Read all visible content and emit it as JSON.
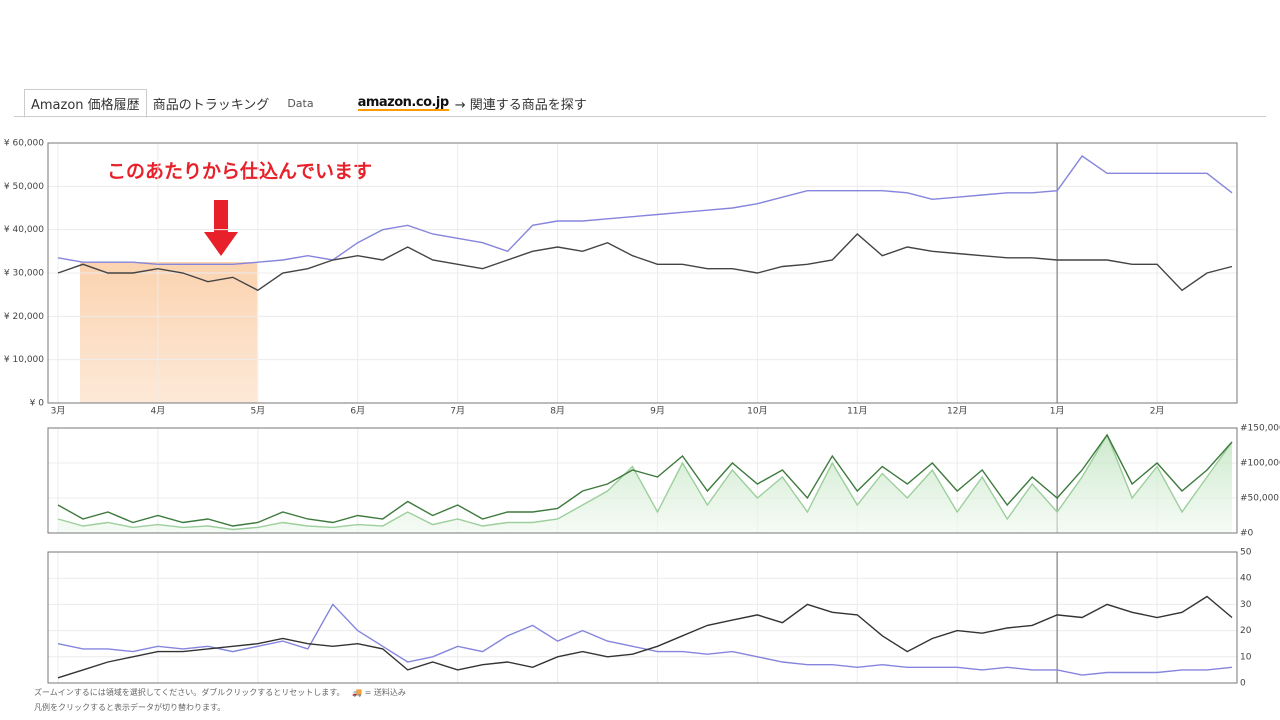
{
  "tabs": [
    "Amazon 価格履歴",
    "商品のトラッキング",
    "Data",
    "amazon.co.jp",
    "→ 関連する商品を探す"
  ],
  "annotation": "このあたりから仕込んでいます",
  "footer": [
    "ズームインするには領域を選択してください。ダブルクリックするとリセットします。",
    "= 送料込み",
    "凡例をクリックすると表示データが切り替わります。"
  ],
  "chart_data": [
    {
      "type": "line",
      "year_divider": 10,
      "xlim": [
        -0.1,
        11.8
      ],
      "xticks": [
        {
          "value": 0,
          "label": "3月"
        },
        {
          "value": 1,
          "label": "4月"
        },
        {
          "value": 2,
          "label": "5月"
        },
        {
          "value": 3,
          "label": "6月"
        },
        {
          "value": 4,
          "label": "7月"
        },
        {
          "value": 5,
          "label": "8月"
        },
        {
          "value": 6,
          "label": "9月"
        },
        {
          "value": 7,
          "label": "10月"
        },
        {
          "value": 8,
          "label": "11月"
        },
        {
          "value": 9,
          "label": "12月"
        },
        {
          "value": 10,
          "label": "1月"
        },
        {
          "value": 11,
          "label": "2月"
        }
      ],
      "ylim": [
        0,
        60000
      ],
      "yticks": [
        {
          "value": 0,
          "label": "¥ 0"
        },
        {
          "value": 10000,
          "label": "¥ 10,000"
        },
        {
          "value": 20000,
          "label": "¥ 20,000"
        },
        {
          "value": 30000,
          "label": "¥ 30,000"
        },
        {
          "value": 40000,
          "label": "¥ 40,000"
        },
        {
          "value": 50000,
          "label": "¥ 50,000"
        },
        {
          "value": 60000,
          "label": "¥ 60,000"
        }
      ],
      "x": [
        0,
        0.25,
        0.5,
        0.75,
        1,
        1.25,
        1.5,
        1.75,
        2,
        2.25,
        2.5,
        2.75,
        3,
        3.25,
        3.5,
        3.75,
        4,
        4.25,
        4.5,
        4.75,
        5,
        5.25,
        5.5,
        5.75,
        6,
        6.25,
        6.5,
        6.75,
        7,
        7.25,
        7.5,
        7.75,
        8,
        8.25,
        8.5,
        8.75,
        9,
        9.25,
        9.5,
        9.75,
        10,
        10.25,
        10.5,
        10.75,
        11,
        11.25,
        11.5,
        11.75
      ],
      "series": [
        {
          "color": "#8585dd",
          "values": [
            33500,
            32500,
            32500,
            32500,
            32000,
            32000,
            32000,
            32000,
            32500,
            33000,
            34000,
            33000,
            37000,
            40000,
            41000,
            39000,
            38000,
            37000,
            35000,
            41000,
            42000,
            42000,
            42500,
            43000,
            43500,
            44000,
            44500,
            45000,
            46000,
            47500,
            49000,
            49000,
            49000,
            49000,
            48500,
            47000,
            47500,
            48000,
            48500,
            48500,
            49000,
            57000,
            53000,
            53000,
            53000,
            53000,
            53000,
            48500
          ]
        },
        {
          "color": "#444444",
          "values": [
            30000,
            32000,
            30000,
            30000,
            31000,
            30000,
            28000,
            29000,
            26000,
            30000,
            31000,
            33000,
            34000,
            33000,
            36000,
            33000,
            32000,
            31000,
            33000,
            35000,
            36000,
            35000,
            37000,
            34000,
            32000,
            32000,
            31000,
            31000,
            30000,
            31500,
            32000,
            33000,
            39000,
            34000,
            36000,
            35000,
            34500,
            34000,
            33500,
            33500,
            33000,
            33000,
            33000,
            32000,
            32000,
            26000,
            30000,
            31500
          ]
        }
      ]
    },
    {
      "type": "area",
      "xlim": [
        -0.1,
        11.8
      ],
      "ylim": [
        0,
        150000
      ],
      "yticks": [
        {
          "value": 0,
          "label": "#0"
        },
        {
          "value": 50000,
          "label": "#50,000"
        },
        {
          "value": 100000,
          "label": "#100,000"
        },
        {
          "value": 150000,
          "label": "#150,000"
        }
      ],
      "x": [
        0,
        0.25,
        0.5,
        0.75,
        1,
        1.25,
        1.5,
        1.75,
        2,
        2.25,
        2.5,
        2.75,
        3,
        3.25,
        3.5,
        3.75,
        4,
        4.25,
        4.5,
        4.75,
        5,
        5.25,
        5.5,
        5.75,
        6,
        6.25,
        6.5,
        6.75,
        7,
        7.25,
        7.5,
        7.75,
        8,
        8.25,
        8.5,
        8.75,
        9,
        9.25,
        9.5,
        9.75,
        10,
        10.25,
        10.5,
        10.75,
        11,
        11.25,
        11.5,
        11.75
      ],
      "series": [
        {
          "color": "#9ccf9c",
          "values": [
            20000,
            10000,
            15000,
            8000,
            12000,
            8000,
            10000,
            5000,
            8000,
            15000,
            10000,
            8000,
            12000,
            10000,
            30000,
            12000,
            20000,
            10000,
            15000,
            15000,
            20000,
            40000,
            60000,
            95000,
            30000,
            100000,
            40000,
            90000,
            50000,
            80000,
            30000,
            100000,
            40000,
            85000,
            50000,
            90000,
            30000,
            80000,
            20000,
            70000,
            30000,
            80000,
            140000,
            50000,
            95000,
            30000,
            80000,
            130000
          ]
        },
        {
          "color": "#3d7a3d",
          "values": [
            40000,
            20000,
            30000,
            15000,
            25000,
            15000,
            20000,
            10000,
            15000,
            30000,
            20000,
            15000,
            25000,
            20000,
            45000,
            25000,
            40000,
            20000,
            30000,
            30000,
            35000,
            60000,
            70000,
            90000,
            80000,
            110000,
            60000,
            100000,
            70000,
            90000,
            50000,
            110000,
            60000,
            95000,
            70000,
            100000,
            60000,
            90000,
            40000,
            80000,
            50000,
            90000,
            140000,
            70000,
            100000,
            60000,
            90000,
            130000
          ]
        }
      ]
    },
    {
      "type": "line",
      "xlim": [
        -0.1,
        11.8
      ],
      "ylim": [
        0,
        50
      ],
      "yticks": [
        0,
        10,
        20,
        30,
        40,
        50
      ],
      "x": [
        0,
        0.25,
        0.5,
        0.75,
        1,
        1.25,
        1.5,
        1.75,
        2,
        2.25,
        2.5,
        2.75,
        3,
        3.25,
        3.5,
        3.75,
        4,
        4.25,
        4.5,
        4.75,
        5,
        5.25,
        5.5,
        5.75,
        6,
        6.25,
        6.5,
        6.75,
        7,
        7.25,
        7.5,
        7.75,
        8,
        8.25,
        8.5,
        8.75,
        9,
        9.25,
        9.5,
        9.75,
        10,
        10.25,
        10.5,
        10.75,
        11,
        11.25,
        11.5,
        11.75
      ],
      "series": [
        {
          "color": "#8585dd",
          "values": [
            15,
            13,
            13,
            12,
            14,
            13,
            14,
            12,
            14,
            16,
            13,
            30,
            20,
            14,
            8,
            10,
            14,
            12,
            18,
            22,
            16,
            20,
            16,
            14,
            12,
            12,
            11,
            12,
            10,
            8,
            7,
            7,
            6,
            7,
            6,
            6,
            6,
            5,
            6,
            5,
            5,
            3,
            4,
            4,
            4,
            5,
            5,
            6
          ]
        },
        {
          "color": "#333333",
          "values": [
            2,
            5,
            8,
            10,
            12,
            12,
            13,
            14,
            15,
            17,
            15,
            14,
            15,
            13,
            5,
            8,
            5,
            7,
            8,
            6,
            10,
            12,
            10,
            11,
            14,
            18,
            22,
            24,
            26,
            23,
            30,
            27,
            26,
            18,
            12,
            17,
            20,
            19,
            21,
            22,
            26,
            25,
            30,
            27,
            25,
            27,
            33,
            25
          ]
        }
      ]
    }
  ]
}
